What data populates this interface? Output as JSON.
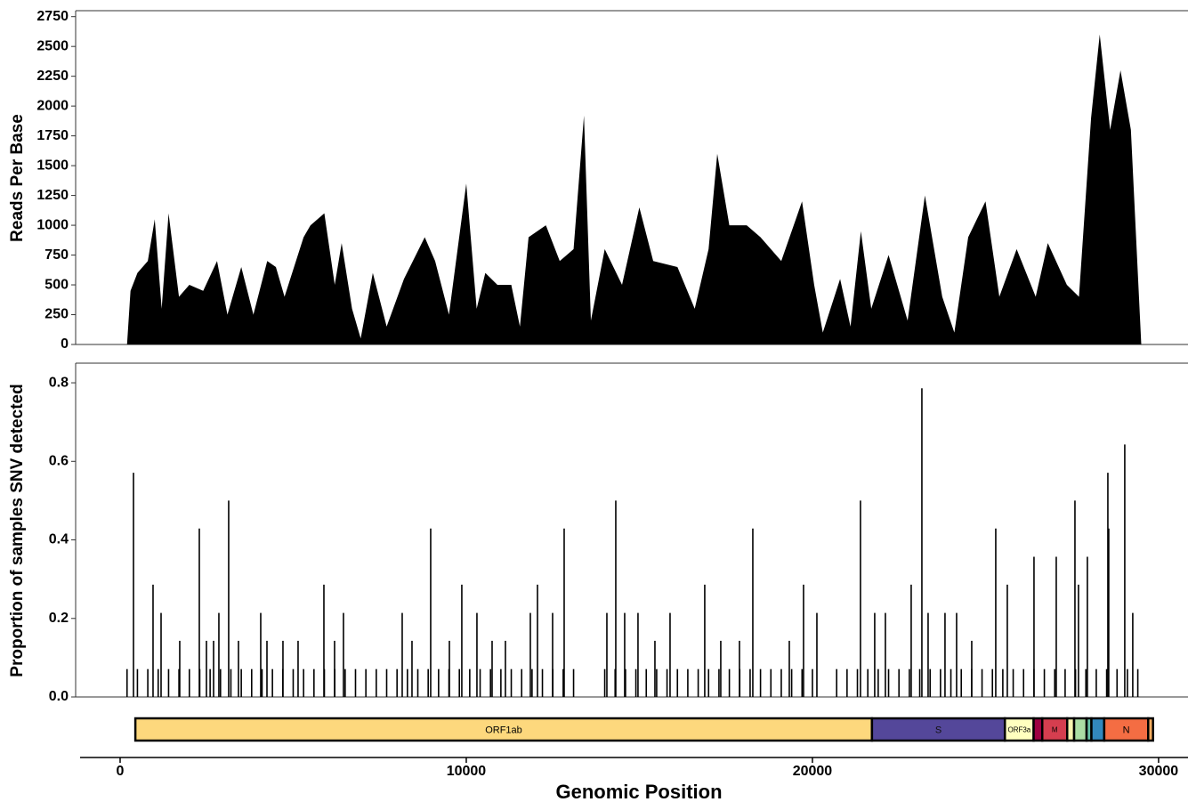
{
  "chart_data": [
    {
      "type": "area",
      "ylabel": "Reads Per Base",
      "color": "#000000",
      "xlim": [
        -1285,
        30850
      ],
      "ylim": [
        0,
        2800
      ],
      "yticks": [
        0,
        250,
        500,
        750,
        1000,
        1250,
        1500,
        1750,
        2000,
        2250,
        2500,
        2750
      ],
      "x": [
        200,
        300,
        500,
        800,
        1000,
        1200,
        1400,
        1700,
        2000,
        2400,
        2800,
        3100,
        3500,
        3850,
        4250,
        4500,
        4750,
        5300,
        5500,
        5900,
        6200,
        6400,
        6700,
        6950,
        7300,
        7700,
        8200,
        8800,
        9100,
        9500,
        10000,
        10300,
        10550,
        10900,
        11300,
        11550,
        11800,
        12300,
        12700,
        13100,
        13400,
        13600,
        14000,
        14500,
        15000,
        15400,
        16100,
        16600,
        17000,
        17250,
        17600,
        18100,
        18500,
        19100,
        19700,
        20050,
        20300,
        20800,
        21100,
        21400,
        21700,
        22200,
        22750,
        23250,
        23750,
        24100,
        24500,
        25000,
        25400,
        25900,
        26450,
        26800,
        27350,
        27700,
        28050,
        28300,
        28600,
        28900,
        29200,
        29400,
        29500
      ],
      "values": [
        0,
        450,
        600,
        700,
        1050,
        300,
        1100,
        400,
        500,
        450,
        700,
        250,
        650,
        250,
        700,
        650,
        400,
        900,
        1000,
        1100,
        500,
        850,
        300,
        50,
        600,
        150,
        550,
        900,
        700,
        250,
        1350,
        300,
        600,
        500,
        500,
        150,
        900,
        1000,
        700,
        800,
        1920,
        200,
        800,
        500,
        1150,
        700,
        650,
        300,
        800,
        1600,
        1000,
        1000,
        900,
        700,
        1200,
        500,
        100,
        550,
        150,
        950,
        300,
        750,
        200,
        1250,
        400,
        100,
        900,
        1200,
        400,
        800,
        400,
        850,
        500,
        400,
        1900,
        2600,
        1800,
        2300,
        1800,
        600,
        0
      ]
    },
    {
      "type": "spike",
      "ylabel": "Proportion of samples SNV detected",
      "color": "#000000",
      "xlim": [
        -1285,
        30850
      ],
      "ylim": [
        0,
        0.85
      ],
      "yticks": [
        {
          "value": 0,
          "label": "0.0"
        },
        0.2,
        0.4,
        0.6,
        0.8
      ],
      "x": [
        386,
        951,
        1183,
        1722,
        2288,
        2494,
        2700,
        2853,
        3136,
        3419,
        4062,
        4242,
        4704,
        5141,
        5887,
        6195,
        6452,
        8149,
        8432,
        8972,
        9512,
        9871,
        10308,
        10746,
        11131,
        11851,
        12057,
        12494,
        12828,
        14062,
        14319,
        14576,
        14961,
        15450,
        15887,
        16889,
        17352,
        17892,
        18278,
        19332,
        19743,
        20129,
        21388,
        21799,
        22108,
        22853,
        23162,
        23342,
        23830,
        24165,
        24602,
        25296,
        25630,
        26401,
        27044,
        27584,
        27686,
        27943,
        28535,
        28560,
        29023,
        29254,
        200,
        500,
        800,
        1100,
        1400,
        1700,
        2000,
        2300,
        2600,
        2900,
        3200,
        3500,
        3800,
        4100,
        4400,
        4700,
        5000,
        5300,
        5600,
        5900,
        6200,
        6500,
        6800,
        7100,
        7400,
        7700,
        8000,
        8300,
        8600,
        8900,
        9200,
        9500,
        9800,
        10100,
        10400,
        10700,
        11000,
        11300,
        11600,
        11900,
        12200,
        12500,
        12800,
        13100,
        14000,
        14300,
        14600,
        14900,
        15200,
        15500,
        15800,
        16100,
        16400,
        16700,
        17000,
        17300,
        17600,
        17900,
        18200,
        18500,
        18800,
        19100,
        19400,
        19700,
        20000,
        20700,
        21000,
        21300,
        21600,
        21900,
        22200,
        22500,
        22800,
        23100,
        23400,
        23700,
        24000,
        24300,
        24600,
        24900,
        25200,
        25500,
        25800,
        26100,
        26400,
        26700,
        27000,
        27300,
        27600,
        27900,
        28200,
        28500,
        28800,
        29100,
        29400
      ],
      "values": [
        0.571,
        0.286,
        0.214,
        0.143,
        0.429,
        0.143,
        0.143,
        0.214,
        0.5,
        0.143,
        0.214,
        0.143,
        0.143,
        0.143,
        0.286,
        0.143,
        0.214,
        0.214,
        0.143,
        0.429,
        0.143,
        0.286,
        0.214,
        0.143,
        0.143,
        0.214,
        0.286,
        0.214,
        0.429,
        0.214,
        0.5,
        0.214,
        0.214,
        0.143,
        0.214,
        0.286,
        0.143,
        0.143,
        0.429,
        0.143,
        0.286,
        0.214,
        0.5,
        0.214,
        0.214,
        0.286,
        0.786,
        0.214,
        0.214,
        0.214,
        0.143,
        0.429,
        0.286,
        0.357,
        0.357,
        0.5,
        0.286,
        0.357,
        0.571,
        0.429,
        0.643,
        0.214,
        0.071,
        0.071,
        0.071,
        0.071,
        0.071,
        0.071,
        0.071,
        0.071,
        0.071,
        0.071,
        0.071,
        0.071,
        0.071,
        0.071,
        0.071,
        0.071,
        0.071,
        0.071,
        0.071,
        0.071,
        0.071,
        0.071,
        0.071,
        0.071,
        0.071,
        0.071,
        0.071,
        0.071,
        0.071,
        0.071,
        0.071,
        0.071,
        0.071,
        0.071,
        0.071,
        0.071,
        0.071,
        0.071,
        0.071,
        0.071,
        0.071,
        0.071,
        0.071,
        0.071,
        0.071,
        0.071,
        0.071,
        0.071,
        0.071,
        0.071,
        0.071,
        0.071,
        0.071,
        0.071,
        0.071,
        0.071,
        0.071,
        0.071,
        0.071,
        0.071,
        0.071,
        0.071,
        0.071,
        0.071,
        0.071,
        0.071,
        0.071,
        0.071,
        0.071,
        0.071,
        0.071,
        0.071,
        0.071,
        0.071,
        0.071,
        0.071,
        0.071,
        0.071,
        0.071,
        0.071,
        0.071,
        0.071,
        0.071,
        0.071,
        0.071,
        0.071,
        0.071,
        0.071,
        0.071,
        0.071,
        0.071,
        0.071,
        0.071,
        0.071,
        0.071
      ]
    },
    {
      "type": "gene_map",
      "xlabel": "Genomic Position",
      "xlim": [
        -1285,
        30850
      ],
      "xticks": [
        0,
        10000,
        20000,
        30000
      ],
      "genes": [
        {
          "name": "ORF1ab",
          "start": 440,
          "end": 21720,
          "color": "#fdd87d"
        },
        {
          "name": "S",
          "start": 21720,
          "end": 25560,
          "color": "#54479a"
        },
        {
          "name": "ORF3a",
          "start": 25560,
          "end": 26390,
          "color": "#ffffbf"
        },
        {
          "name": null,
          "start": 26390,
          "end": 26640,
          "color": "#9e0142"
        },
        {
          "name": "M",
          "start": 26640,
          "end": 27360,
          "color": "#d53e4f"
        },
        {
          "name": null,
          "start": 27360,
          "end": 27560,
          "color": "#f7f4b0"
        },
        {
          "name": null,
          "start": 27560,
          "end": 27920,
          "color": "#abdda4"
        },
        {
          "name": null,
          "start": 27920,
          "end": 28060,
          "color": "#66c2a5"
        },
        {
          "name": null,
          "start": 28060,
          "end": 28430,
          "color": "#3288bd"
        },
        {
          "name": "N",
          "start": 28430,
          "end": 29700,
          "color": "#f46d43"
        },
        {
          "name": null,
          "start": 29700,
          "end": 29840,
          "color": "#fdae61"
        }
      ]
    }
  ]
}
